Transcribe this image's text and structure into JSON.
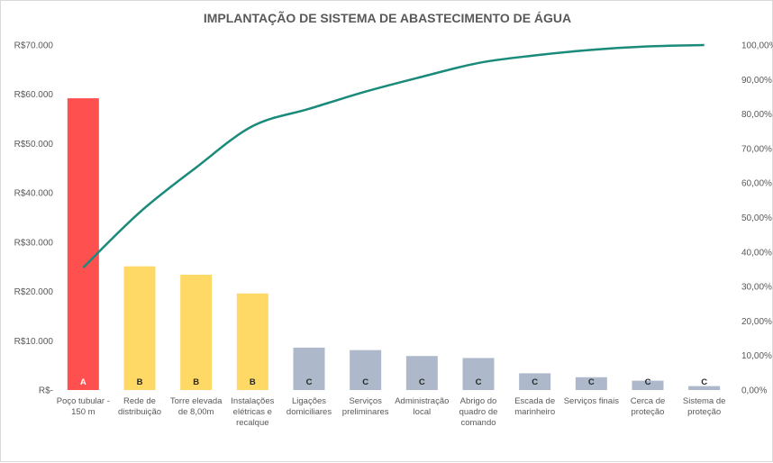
{
  "chart_data": {
    "type": "bar",
    "title": "IMPLANTAÇÃO DE SISTEMA DE ABASTECIMENTO DE ÁGUA",
    "categories": [
      [
        "Poço tubular -",
        "150 m"
      ],
      [
        "Rede de",
        "distribuição"
      ],
      [
        "Torre elevada",
        "de 8,00m"
      ],
      [
        "Instalações",
        "elétricas e",
        "recalque"
      ],
      [
        "Ligações",
        "domiciliares"
      ],
      [
        "Serviços",
        "preliminares"
      ],
      [
        "Administração",
        "local"
      ],
      [
        "Abrigo do",
        "quadro de",
        "comando"
      ],
      [
        "Escada de",
        "marinheiro"
      ],
      [
        "Serviços finais"
      ],
      [
        "Cerca de",
        "proteção"
      ],
      [
        "Sistema de",
        "proteção"
      ]
    ],
    "series": [
      {
        "type": "bar",
        "values": [
          59200,
          25100,
          23400,
          19600,
          8600,
          8100,
          6900,
          6500,
          3400,
          2600,
          1900,
          800
        ],
        "class_labels": [
          "A",
          "B",
          "B",
          "B",
          "C",
          "C",
          "C",
          "C",
          "C",
          "C",
          "C",
          "C"
        ],
        "axis": "left"
      },
      {
        "type": "line",
        "values": [
          35.5,
          51.5,
          64.5,
          76.5,
          81.5,
          86.5,
          90.8,
          94.8,
          97.0,
          98.6,
          99.6,
          100.0
        ],
        "axis": "right",
        "unit": "%"
      }
    ],
    "class_colors": {
      "A": "#ff5050",
      "B": "#ffd966",
      "C": "#adb9ca"
    },
    "class_label_colors": {
      "A": "#ffffff",
      "B": "#262626",
      "C": "#262626"
    },
    "line_color": "#1a8a7a",
    "y_left": {
      "ylim": [
        0,
        70000
      ],
      "ticks": [
        0,
        10000,
        20000,
        30000,
        40000,
        50000,
        60000,
        70000
      ],
      "tick_labels": [
        "R$-",
        "R$10.000",
        "R$20.000",
        "R$30.000",
        "R$40.000",
        "R$50.000",
        "R$60.000",
        "R$70.000"
      ]
    },
    "y_right": {
      "ylim": [
        0,
        100
      ],
      "ticks": [
        0,
        10,
        20,
        30,
        40,
        50,
        60,
        70,
        80,
        90,
        100
      ],
      "tick_labels": [
        "0,00%",
        "10,00%",
        "20,00%",
        "30,00%",
        "40,00%",
        "50,00%",
        "60,00%",
        "70,00%",
        "80,00%",
        "90,00%",
        "100,00%"
      ]
    },
    "grid": false,
    "legend": "none"
  }
}
